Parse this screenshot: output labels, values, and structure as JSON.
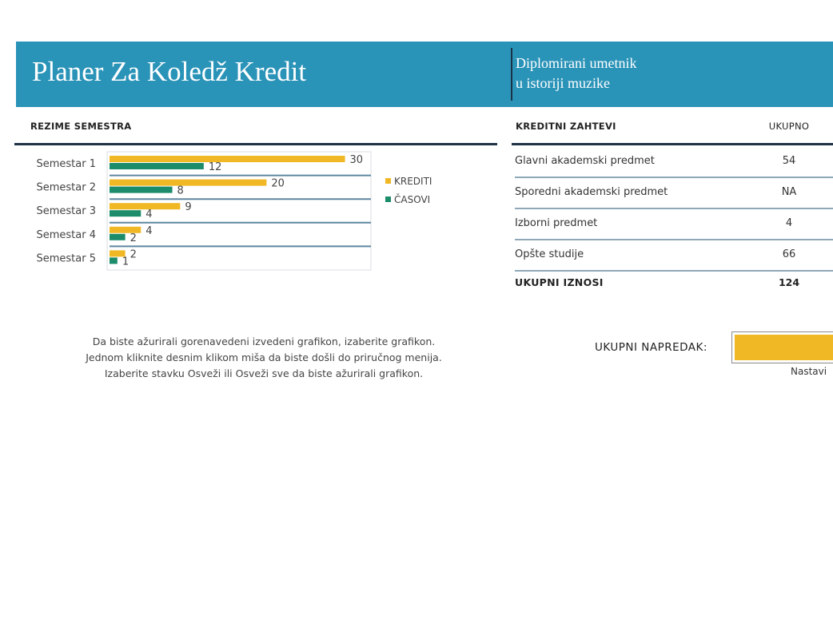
{
  "header": {
    "title": "Planer Za Koledž Kredit",
    "subtitle_line1": "Diplomirani umetnik",
    "subtitle_line2": "u istoriji muzike"
  },
  "semester_summary": {
    "heading": "REZIME SEMESTRA"
  },
  "chart_data": {
    "type": "bar",
    "orientation": "horizontal",
    "categories": [
      "Semestar 1",
      "Semestar 2",
      "Semestar 3",
      "Semestar 4",
      "Semestar 5"
    ],
    "series": [
      {
        "name": "KREDITI",
        "values": [
          30,
          20,
          9,
          4,
          2
        ],
        "color": "#f0b824"
      },
      {
        "name": "ČASOVI",
        "values": [
          12,
          8,
          4,
          2,
          1
        ],
        "color": "#1c8c6a"
      }
    ],
    "xlim": [
      0,
      33
    ],
    "legend_position": "right"
  },
  "requirements": {
    "heading": "KREDITNI ZAHTEVI",
    "total_column_heading": "UKUPNO",
    "rows": [
      {
        "name": "Glavni akademski predmet",
        "value": "54"
      },
      {
        "name": "Sporedni akademski predmet",
        "value": "NA"
      },
      {
        "name": "Izborni predmet",
        "value": "4"
      },
      {
        "name": "Opšte studije",
        "value": "66"
      }
    ],
    "total_label": "UKUPNI IZNOSI",
    "total_value": "124"
  },
  "instructions": {
    "line1": "Da biste ažurirali gorenavedeni izvedeni grafikon, izaberite grafikon.",
    "line2": "Jednom kliknite desnim klikom miša da biste došli do priručnog menija.",
    "line3": "Izaberite stavku Osveži ili Osveži sve da biste ažurirali grafikon."
  },
  "progress": {
    "label": "UKUPNI NAPREDAK:",
    "caption": "Nastavi",
    "fill_fraction": 1.0,
    "color": "#f0b824"
  }
}
